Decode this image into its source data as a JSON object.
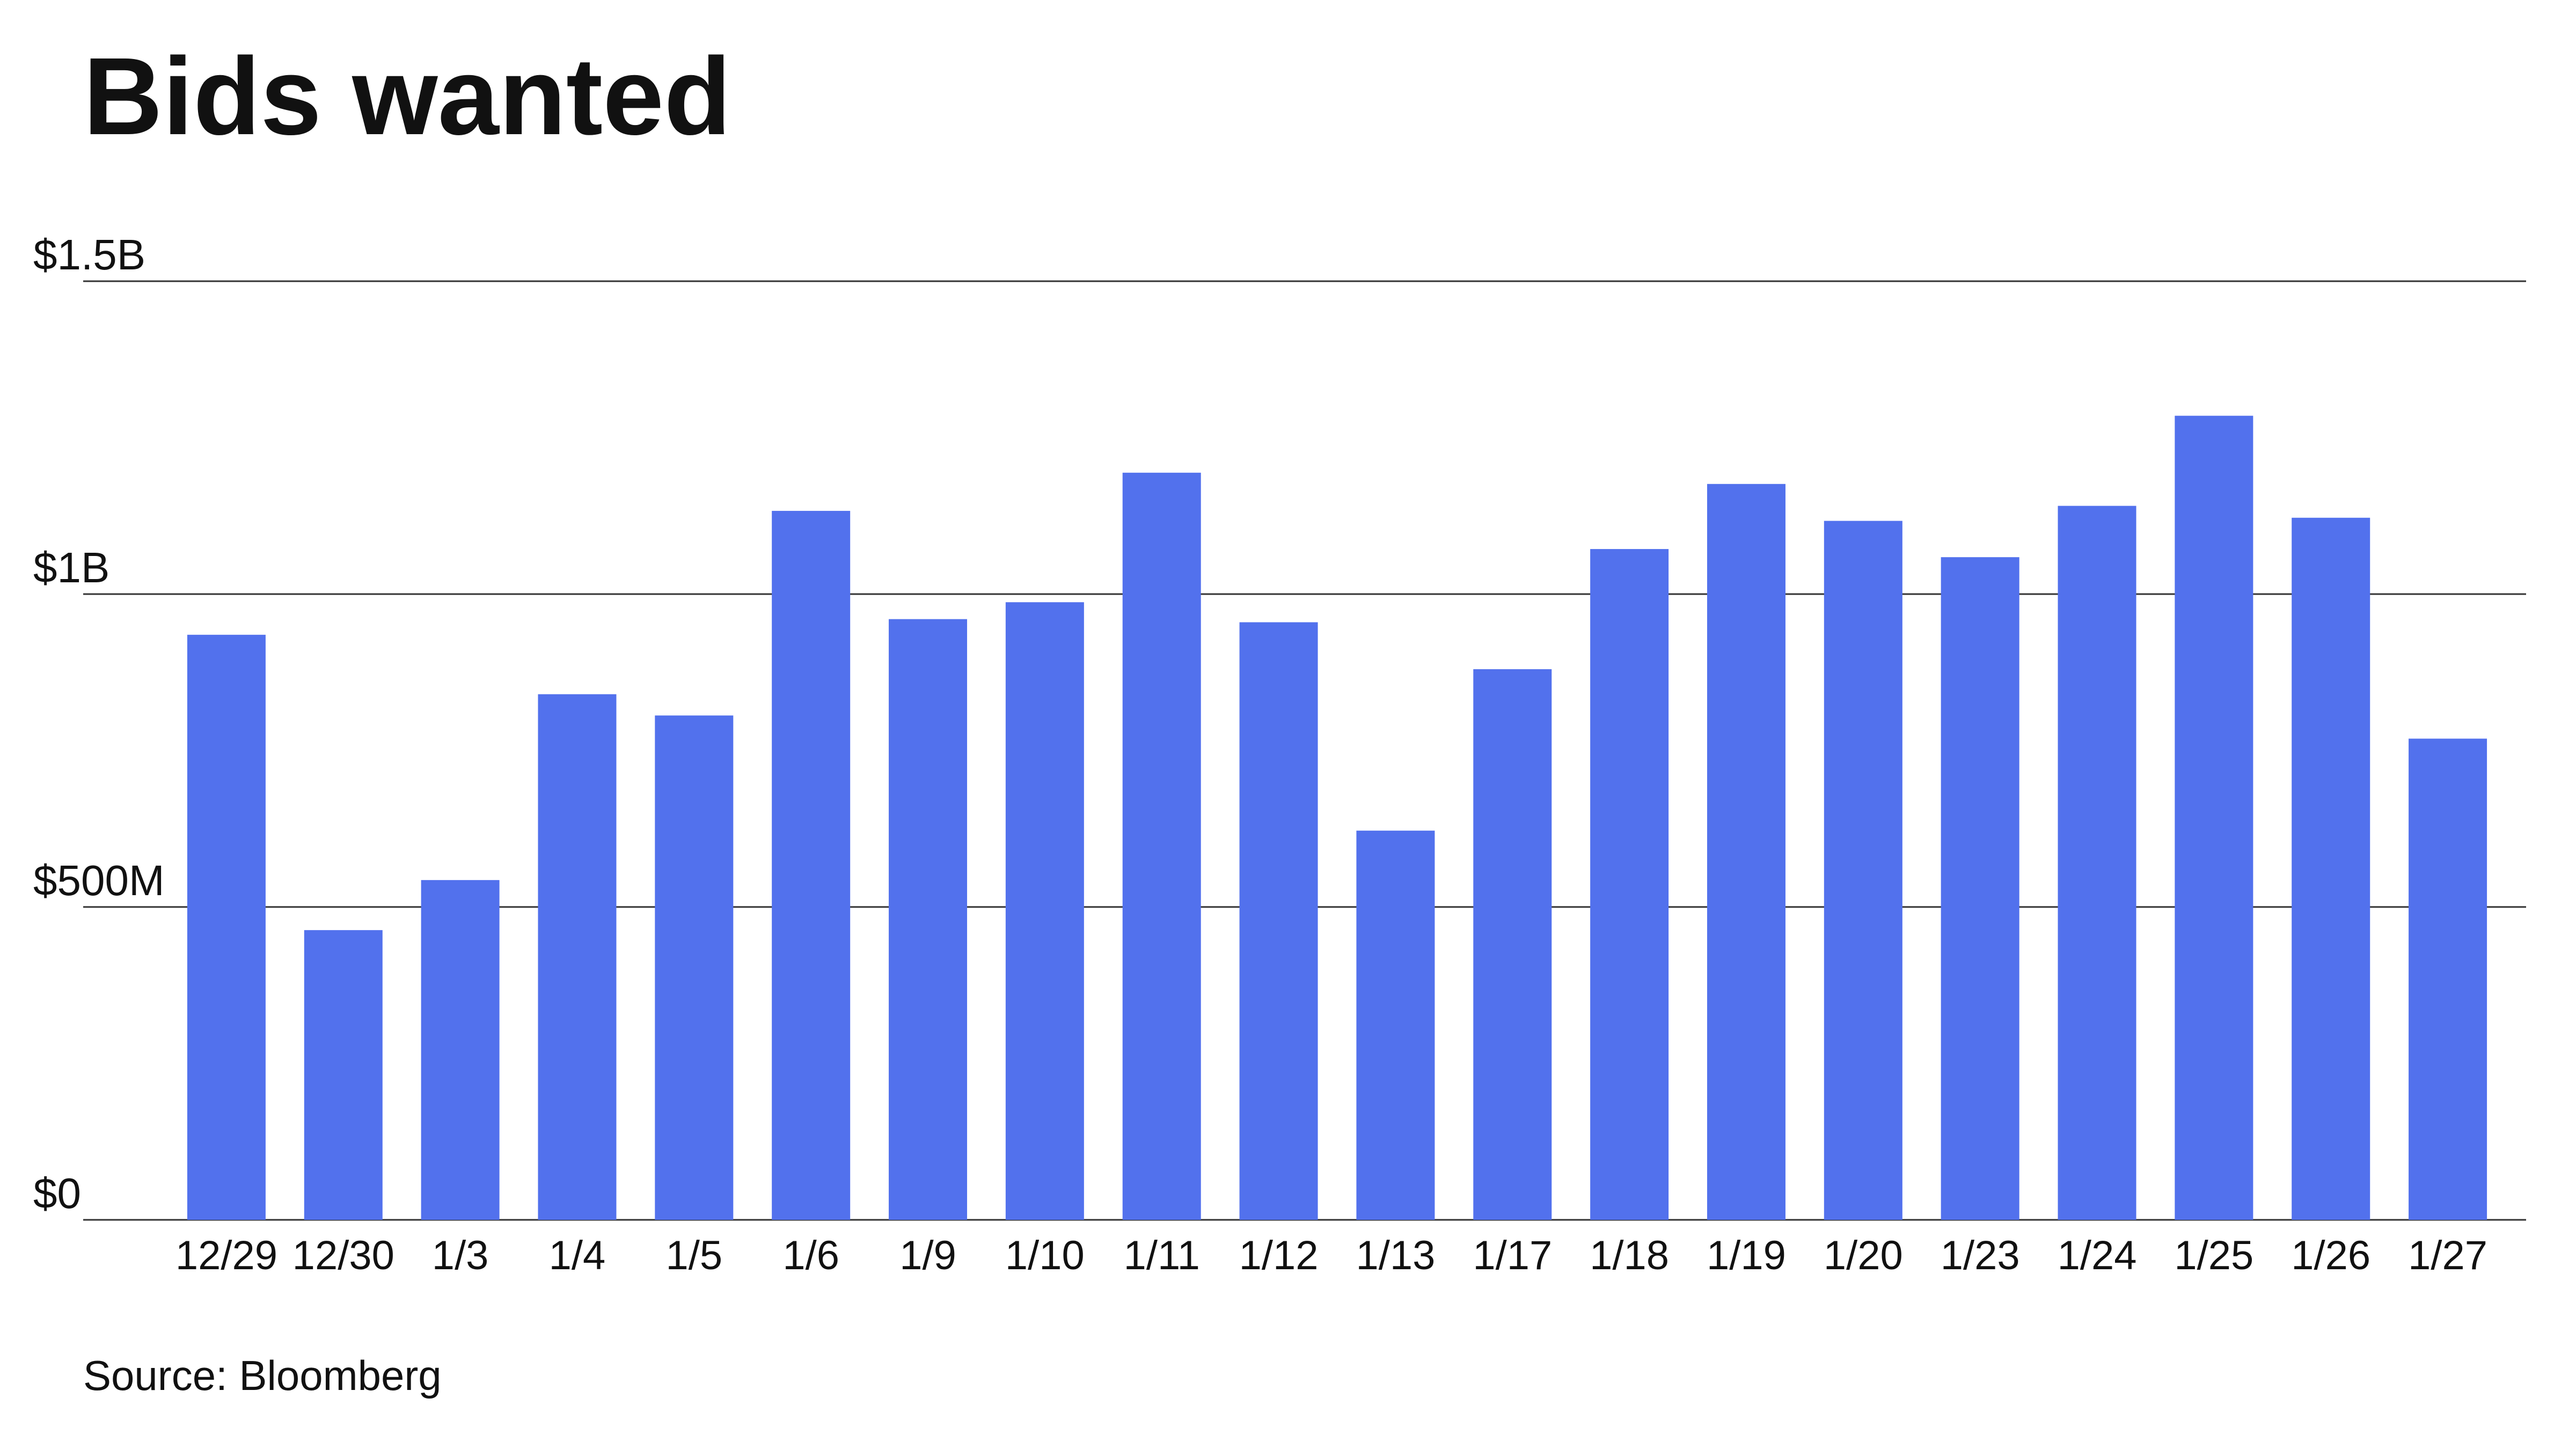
{
  "chart_data": {
    "type": "bar",
    "title": "Bids wanted",
    "source": "Source: Bloomberg",
    "categories": [
      "12/29",
      "12/30",
      "1/3",
      "1/4",
      "1/5",
      "1/6",
      "1/9",
      "1/10",
      "1/11",
      "1/12",
      "1/13",
      "1/17",
      "1/18",
      "1/19",
      "1/20",
      "1/23",
      "1/24",
      "1/25",
      "1/26",
      "1/27"
    ],
    "values": [
      935000000,
      463000000,
      543000000,
      840000000,
      806000000,
      1133000000,
      960000000,
      987000000,
      1194000000,
      955000000,
      622000000,
      880000000,
      1072000000,
      1176000000,
      1117000000,
      1059000000,
      1141000000,
      1285000000,
      1122000000,
      769000000
    ],
    "color": "#5271ed",
    "ylim": [
      0,
      1500000000
    ],
    "yticks": [
      {
        "value": 0,
        "label": "$0"
      },
      {
        "value": 500000000,
        "label": "$500M"
      },
      {
        "value": 1000000000,
        "label": "$1B"
      },
      {
        "value": 1500000000,
        "label": "$1.5B"
      }
    ],
    "grid": true
  }
}
